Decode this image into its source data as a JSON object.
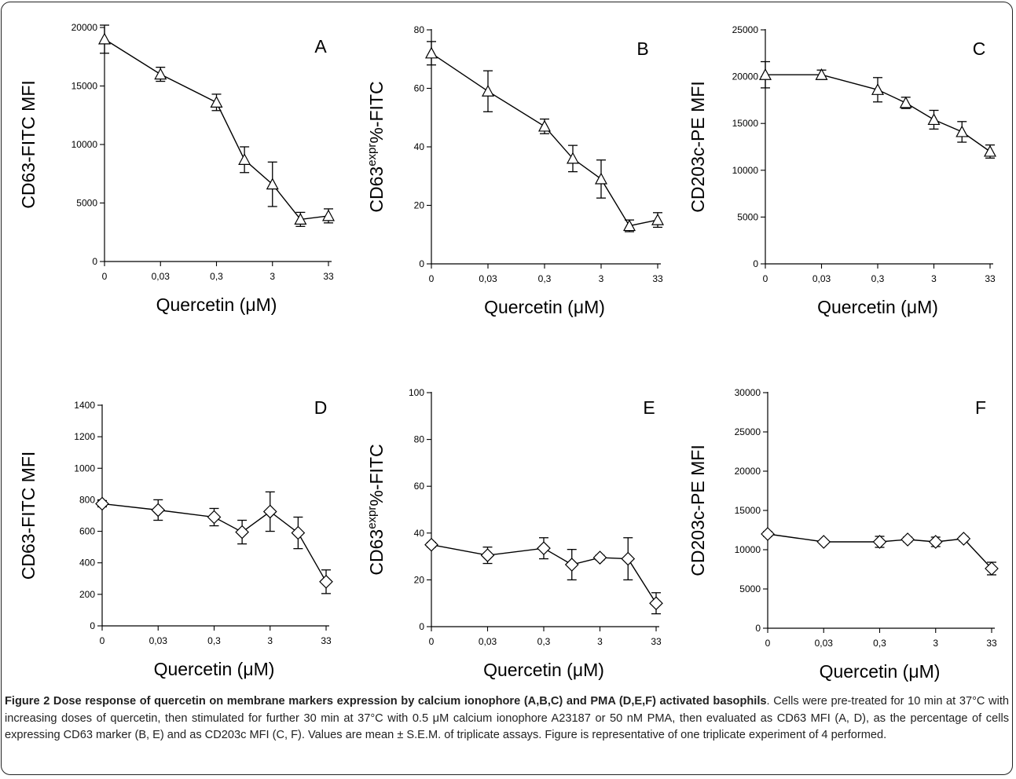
{
  "x_axis": {
    "ticks": [
      "0",
      "0,03",
      "0,3",
      "3",
      "33"
    ],
    "label": "Quercetin (μM)"
  },
  "caption": {
    "title": "Figure 2 Dose response of quercetin on membrane markers expression by calcium ionophore (A,B,C) and PMA (D,E,F) activated basophils",
    "body": ". Cells were pre-treated for 10 min at 37°C with increasing doses of quercetin, then stimulated for further 30 min at 37°C with 0.5 μM calcium ionophore A23187 or 50 nM PMA, then evaluated as CD63 MFI (A, D), as the percentage of cells expressing CD63 marker (B, E) and as CD203c MFI (C, F). Values are mean ± S.E.M. of triplicate assays. Figure is representative of one triplicate experiment of 4 performed."
  },
  "chart_data": [
    {
      "panel": "A",
      "type": "line",
      "marker": "triangle",
      "ylabel": "CD63-FITC MFI",
      "xlabel": "Quercetin (μM)",
      "ylim": [
        0,
        20000
      ],
      "yticks": [
        0,
        5000,
        10000,
        15000,
        20000
      ],
      "x": [
        0,
        1,
        2,
        2.5,
        3,
        3.5,
        4
      ],
      "values": [
        19000,
        16000,
        13600,
        8700,
        6600,
        3600,
        3900
      ],
      "errors": [
        1200,
        600,
        700,
        1100,
        1900,
        600,
        600
      ]
    },
    {
      "panel": "B",
      "type": "line",
      "marker": "triangle",
      "ylabel": "CD63expr%-FITC",
      "xlabel": "Quercetin (μM)",
      "ylim": [
        0,
        80
      ],
      "yticks": [
        0,
        20,
        40,
        60,
        80
      ],
      "x": [
        0,
        1,
        2,
        2.5,
        3,
        3.5,
        4
      ],
      "values": [
        72,
        59,
        47,
        36,
        29,
        13,
        15
      ],
      "errors": [
        4,
        7,
        2.5,
        4.5,
        6.5,
        2,
        2.5
      ]
    },
    {
      "panel": "C",
      "type": "line",
      "marker": "triangle",
      "ylabel": "CD203c-PE MFI",
      "xlabel": "Quercetin (μM)",
      "ylim": [
        0,
        25000
      ],
      "yticks": [
        0,
        5000,
        10000,
        15000,
        20000,
        25000
      ],
      "x": [
        0,
        1,
        2,
        2.5,
        3,
        3.5,
        4
      ],
      "values": [
        20200,
        20200,
        18600,
        17200,
        15400,
        14100,
        12000
      ],
      "errors": [
        1400,
        500,
        1300,
        600,
        1000,
        1100,
        700
      ]
    },
    {
      "panel": "D",
      "type": "line",
      "marker": "diamond",
      "ylabel": "CD63-FITC MFI",
      "xlabel": "Quercetin (μM)",
      "ylim": [
        0,
        1400
      ],
      "yticks": [
        0,
        200,
        400,
        600,
        800,
        1000,
        1200,
        1400
      ],
      "x": [
        0,
        1,
        2,
        2.5,
        3,
        3.5,
        4
      ],
      "values": [
        775,
        735,
        690,
        595,
        725,
        590,
        280
      ],
      "errors": [
        20,
        65,
        55,
        75,
        125,
        100,
        75
      ]
    },
    {
      "panel": "E",
      "type": "line",
      "marker": "diamond",
      "ylabel": "CD63expr%-FITC",
      "xlabel": "Quercetin (μM)",
      "ylim": [
        0,
        100
      ],
      "yticks": [
        0,
        20,
        40,
        60,
        80,
        100
      ],
      "x": [
        0,
        1,
        2,
        2.5,
        3,
        3.5,
        4
      ],
      "values": [
        35,
        30.5,
        33.5,
        26.5,
        29.5,
        29,
        10
      ],
      "errors": [
        1,
        3.5,
        4.5,
        6.5,
        1,
        9,
        4.5
      ]
    },
    {
      "panel": "F",
      "type": "line",
      "marker": "diamond",
      "ylabel": "CD203c-PE MFI",
      "xlabel": "Quercetin (μM)",
      "ylim": [
        0,
        30000
      ],
      "yticks": [
        0,
        5000,
        10000,
        15000,
        20000,
        25000,
        30000
      ],
      "x": [
        0,
        1,
        2,
        2.5,
        3,
        3.5,
        4
      ],
      "values": [
        12000,
        11000,
        11000,
        11300,
        11000,
        11400,
        7600
      ],
      "errors": [
        300,
        200,
        700,
        300,
        600,
        300,
        800
      ]
    }
  ]
}
